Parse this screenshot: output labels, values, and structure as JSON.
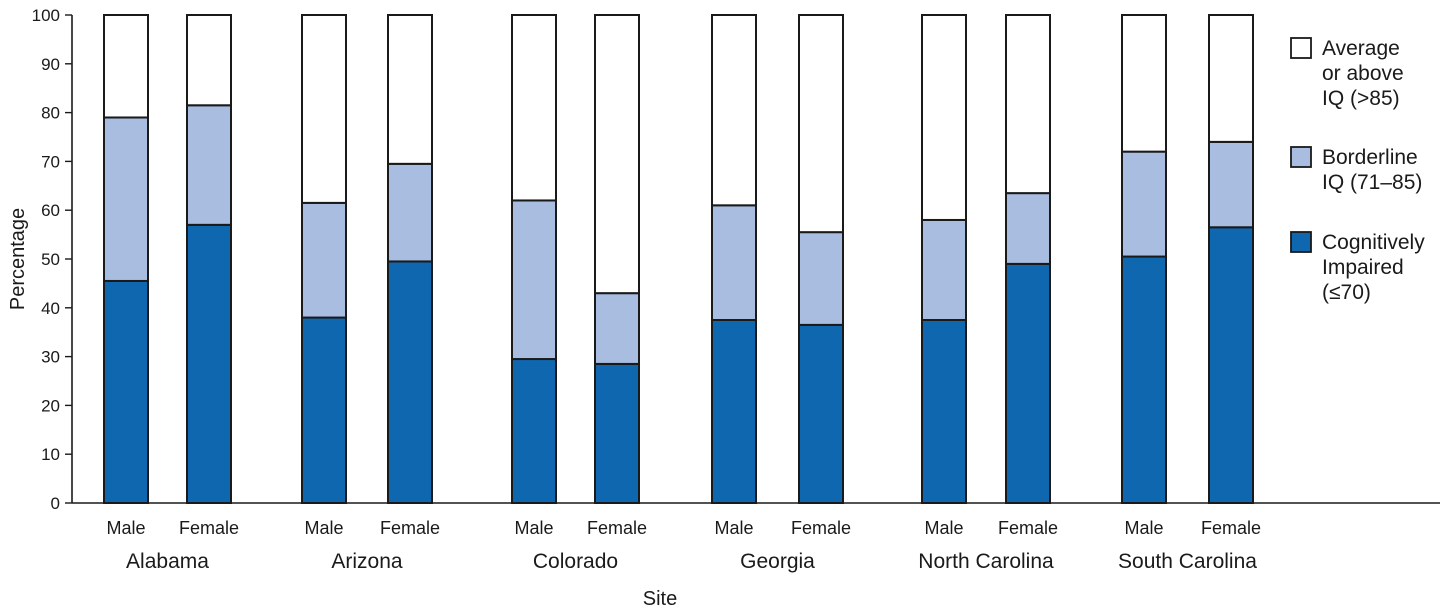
{
  "chart_data": {
    "type": "bar",
    "stacked": true,
    "xlabel": "Site",
    "ylabel": "Percentage",
    "ylim": [
      0,
      100
    ],
    "yticks": [
      0,
      10,
      20,
      30,
      40,
      50,
      60,
      70,
      80,
      90,
      100
    ],
    "groups": [
      "Alabama",
      "Arizona",
      "Colorado",
      "Georgia",
      "North Carolina",
      "South Carolina"
    ],
    "subcategories": [
      "Male",
      "Female"
    ],
    "series": [
      {
        "name": "Cognitively Impaired (≤70)",
        "color": "#0f67b0",
        "values": [
          45.5,
          57,
          38,
          49.5,
          29.5,
          28.5,
          37.5,
          36.5,
          37.5,
          49,
          50.5,
          56.5
        ]
      },
      {
        "name": "Borderline IQ (71–85)",
        "color": "#a9bde1",
        "values": [
          33.5,
          24.5,
          23.5,
          20,
          32.5,
          14.5,
          23.5,
          19,
          20.5,
          14.5,
          21.5,
          17.5
        ]
      },
      {
        "name": "Average or above IQ (>85)",
        "color": "#ffffff",
        "values": [
          21,
          18.5,
          38.5,
          30.5,
          38,
          57,
          39,
          44.5,
          42,
          36.5,
          28,
          26
        ]
      }
    ],
    "legend": {
      "position": "right",
      "entries": [
        {
          "lines": [
            "Average",
            "or above",
            "IQ (>85)"
          ],
          "color": "#ffffff"
        },
        {
          "lines": [
            "Borderline",
            "IQ (71–85)"
          ],
          "color": "#a9bde1"
        },
        {
          "lines": [
            "Cognitively",
            "Impaired",
            "(≤70)"
          ],
          "color": "#0f67b0"
        }
      ]
    },
    "grid": false
  }
}
